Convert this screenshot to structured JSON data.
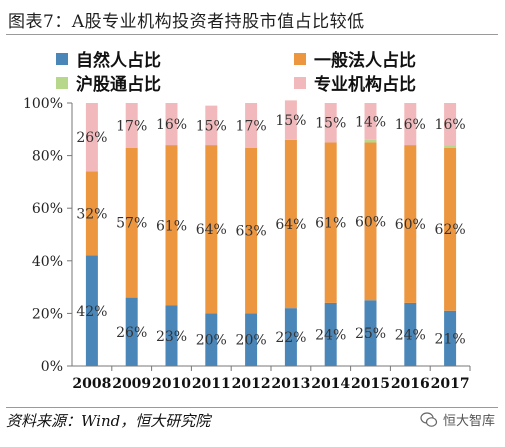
{
  "title": "图表7：A股专业机构投资者持股市值占比较低",
  "source": "资料来源：Wind，恒大研究院",
  "watermark": {
    "text": "恒大智库",
    "icon": "wechat-icon"
  },
  "colors": {
    "ziran": "#4a86b8",
    "yiban": "#ec9640",
    "hugutong": "#b7d88a",
    "zhuanye": "#f2b9bc"
  },
  "chart_data": {
    "type": "bar",
    "stacked": true,
    "categories": [
      "2008",
      "2009",
      "2010",
      "2011",
      "2012",
      "2013",
      "2014",
      "2015",
      "2016",
      "2017"
    ],
    "yticks": [
      "0%",
      "20%",
      "40%",
      "60%",
      "80%",
      "100%"
    ],
    "ylim": [
      0,
      100
    ],
    "legend_position": "top",
    "series": [
      {
        "name": "自然人占比",
        "values": [
          42,
          26,
          23,
          20,
          20,
          22,
          24,
          25,
          24,
          21
        ]
      },
      {
        "name": "一般法人占比",
        "values": [
          32,
          57,
          61,
          64,
          63,
          64,
          61,
          60,
          60,
          62
        ]
      },
      {
        "name": "沪股通占比",
        "values": [
          0,
          0,
          0,
          0,
          0,
          0,
          0,
          1,
          0,
          1
        ]
      },
      {
        "name": "专业机构占比",
        "values": [
          26,
          17,
          16,
          15,
          17,
          15,
          15,
          14,
          16,
          16
        ]
      }
    ],
    "labels": [
      [
        "42%",
        "26%",
        "23%",
        "20%",
        "20%",
        "22%",
        "24%",
        "25%",
        "24%",
        "21%"
      ],
      [
        "32%",
        "57%",
        "61%",
        "64%",
        "63%",
        "64%",
        "61%",
        "60%",
        "60%",
        "62%"
      ],
      null,
      [
        "26%",
        "17%",
        "16%",
        "15%",
        "17%",
        "15%",
        "15%",
        "14%",
        "16%",
        "16%"
      ]
    ]
  }
}
